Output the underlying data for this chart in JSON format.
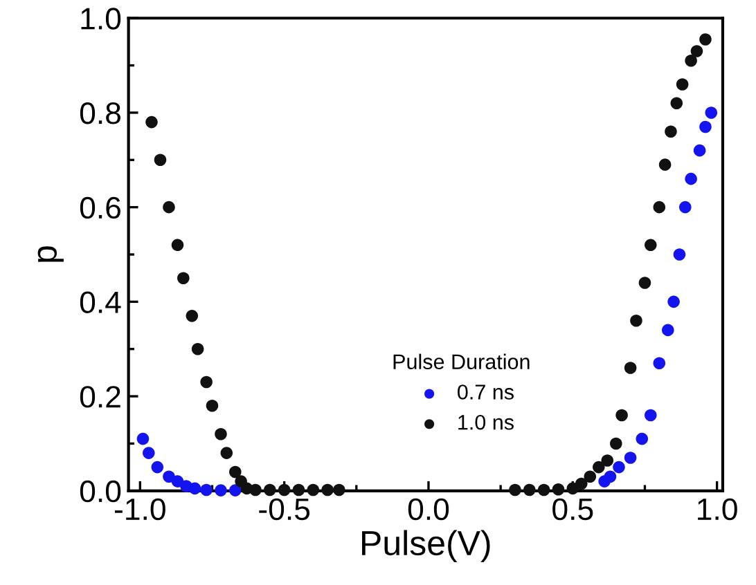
{
  "chart_data": {
    "type": "scatter",
    "xlabel": "Pulse(V)",
    "ylabel": "p",
    "legend_title": "Pulse Duration",
    "legend": "bottom",
    "marker": "circle",
    "grid": false,
    "xlim": [
      -1.04,
      1.02
    ],
    "ylim": [
      0,
      1.0
    ],
    "xticks": [
      {
        "value": -1.0,
        "label": "-1.0"
      },
      {
        "value": -0.5,
        "label": "-0.5"
      },
      {
        "value": 0.0,
        "label": "0.0"
      },
      0.5,
      {
        "value": 1.0,
        "label": "1.0"
      }
    ],
    "yticks": [
      {
        "value": 0.0,
        "label": "0.0"
      },
      0.2,
      0.4,
      0.6,
      0.8,
      {
        "value": 1.0,
        "label": "1.0"
      }
    ],
    "series": [
      {
        "name": "0.7 ns",
        "color": "#1414f0",
        "x": [
          -0.99,
          -0.97,
          -0.94,
          -0.9,
          -0.87,
          -0.84,
          -0.81,
          -0.77,
          -0.72,
          -0.67,
          -0.62,
          0.61,
          0.63,
          0.66,
          0.7,
          0.74,
          0.77,
          0.8,
          0.83,
          0.85,
          0.87,
          0.89,
          0.91,
          0.94,
          0.96,
          0.98
        ],
        "values": [
          0.11,
          0.08,
          0.05,
          0.03,
          0.02,
          0.01,
          0.005,
          0.002,
          0.001,
          0.001,
          null,
          0.02,
          0.03,
          0.05,
          0.07,
          0.11,
          0.16,
          0.27,
          0.34,
          0.4,
          0.5,
          0.6,
          0.66,
          0.72,
          0.77,
          0.8
        ]
      },
      {
        "name": "1.0 ns",
        "color": "#111111",
        "x": [
          -0.96,
          -0.93,
          -0.9,
          -0.87,
          -0.85,
          -0.82,
          -0.8,
          -0.77,
          -0.75,
          -0.72,
          -0.7,
          -0.67,
          -0.65,
          -0.63,
          -0.6,
          -0.55,
          -0.5,
          -0.45,
          -0.4,
          -0.35,
          -0.31,
          0.3,
          0.35,
          0.4,
          0.45,
          0.5,
          0.53,
          0.56,
          0.59,
          0.62,
          0.65,
          0.67,
          0.7,
          0.72,
          0.75,
          0.77,
          0.8,
          0.82,
          0.84,
          0.86,
          0.88,
          0.91,
          0.93,
          0.96
        ],
        "values": [
          0.78,
          0.7,
          0.6,
          0.52,
          0.45,
          0.37,
          0.3,
          0.23,
          0.18,
          0.12,
          0.08,
          0.04,
          0.02,
          0.005,
          0.002,
          0.002,
          0.002,
          0.002,
          0.002,
          0.002,
          0.002,
          0.002,
          0.002,
          0.002,
          0.003,
          0.005,
          0.015,
          0.03,
          0.05,
          0.064,
          0.1,
          0.16,
          0.26,
          0.36,
          0.44,
          0.52,
          0.6,
          0.69,
          0.76,
          0.82,
          0.86,
          0.91,
          0.93,
          0.955
        ]
      }
    ]
  }
}
